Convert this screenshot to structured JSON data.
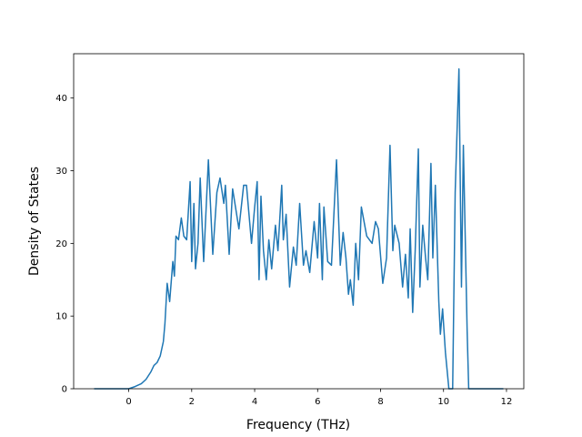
{
  "chart_data": {
    "type": "line",
    "xlabel": "Frequency (THz)",
    "ylabel": "Density of States",
    "x": [
      -1.1,
      -0.5,
      0.0,
      0.2,
      0.4,
      0.55,
      0.7,
      0.8,
      0.9,
      1.0,
      1.05,
      1.1,
      1.15,
      1.22,
      1.3,
      1.4,
      1.45,
      1.5,
      1.58,
      1.67,
      1.75,
      1.84,
      1.95,
      2.0,
      2.07,
      2.12,
      2.2,
      2.27,
      2.38,
      2.53,
      2.67,
      2.8,
      2.9,
      3.02,
      3.07,
      3.19,
      3.3,
      3.5,
      3.65,
      3.74,
      3.9,
      4.0,
      4.08,
      4.14,
      4.2,
      4.28,
      4.37,
      4.45,
      4.54,
      4.66,
      4.74,
      4.86,
      4.91,
      5.0,
      5.11,
      5.23,
      5.32,
      5.43,
      5.55,
      5.63,
      5.75,
      5.83,
      5.89,
      6.0,
      6.06,
      6.15,
      6.2,
      6.32,
      6.44,
      6.6,
      6.72,
      6.81,
      6.9,
      6.98,
      7.04,
      7.13,
      7.21,
      7.3,
      7.39,
      7.56,
      7.73,
      7.84,
      7.93,
      8.07,
      8.19,
      8.3,
      8.39,
      8.45,
      8.59,
      8.7,
      8.79,
      8.88,
      8.94,
      9.02,
      9.1,
      9.2,
      9.25,
      9.34,
      9.43,
      9.5,
      9.6,
      9.66,
      9.74,
      9.85,
      9.9,
      9.97,
      10.06,
      10.17,
      10.29,
      10.37,
      10.49,
      10.57,
      10.63,
      10.75,
      10.8,
      11.9
    ],
    "values": [
      0,
      0,
      0,
      0.3,
      0.7,
      1.3,
      2.3,
      3.2,
      3.6,
      4.5,
      5.5,
      6.5,
      9,
      14.5,
      12,
      17.5,
      15.5,
      21,
      20.5,
      23.5,
      21,
      20.5,
      28.5,
      17.5,
      25.5,
      16.5,
      20,
      29,
      17.5,
      31.5,
      18.5,
      27,
      29,
      25.5,
      28,
      18.5,
      27.5,
      22,
      28,
      28,
      20,
      25,
      28.5,
      15,
      26.5,
      19,
      15,
      20.5,
      16.5,
      22.5,
      19,
      28,
      20.5,
      24,
      14,
      19.5,
      17,
      25.5,
      17,
      19,
      16,
      20,
      23,
      18,
      25.5,
      15,
      25,
      17.5,
      17,
      31.5,
      17,
      21.5,
      18,
      13,
      15,
      11.5,
      20,
      15,
      25,
      21,
      20,
      23,
      22,
      14.5,
      18,
      33.5,
      19,
      22.5,
      20,
      14,
      18.5,
      12.5,
      22,
      10.5,
      19,
      33,
      14,
      22.5,
      18,
      15,
      31,
      18,
      28,
      12,
      7.5,
      11,
      5,
      0,
      0,
      27,
      44,
      14,
      33.5,
      8,
      0,
      0
    ],
    "color": "#1f77b4",
    "xlim": [
      -1.75,
      12.55
    ],
    "xticks": [
      0,
      2,
      4,
      6,
      8,
      10,
      12
    ],
    "ylim": [
      0,
      46.1
    ],
    "yticks": [
      0,
      10,
      20,
      30,
      40
    ]
  }
}
